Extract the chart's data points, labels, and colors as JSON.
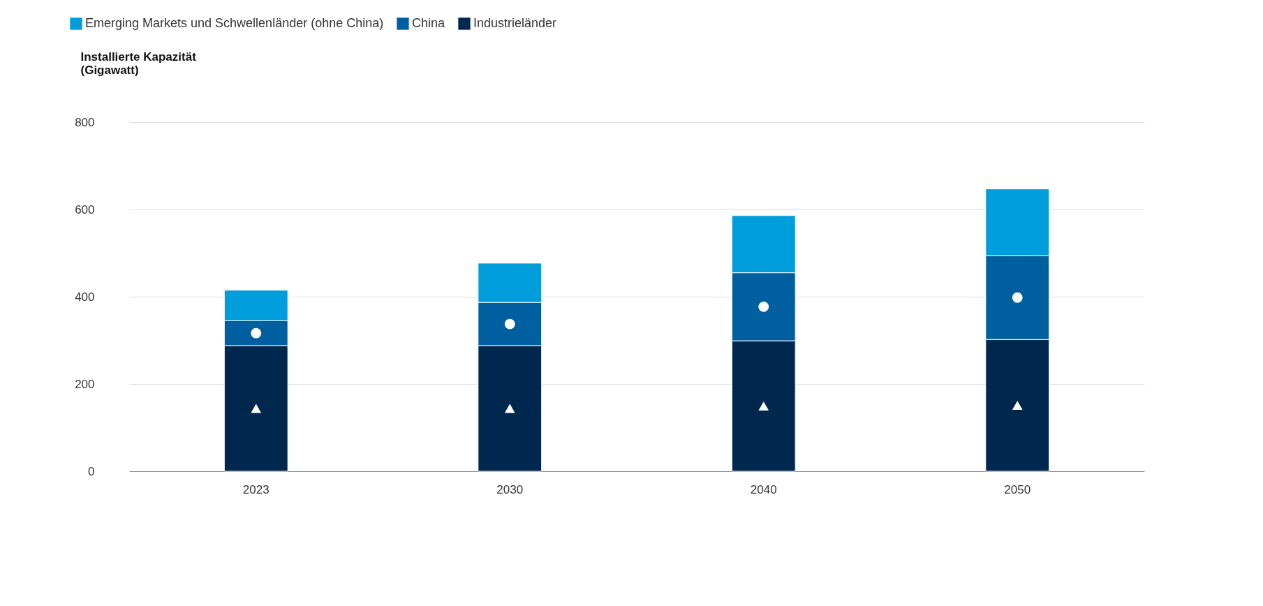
{
  "chart_data": {
    "type": "bar",
    "stacked": true,
    "ylabel": "Installierte Kapazität\n(Gigawatt)",
    "categories": [
      "2023",
      "2030",
      "2040",
      "2050"
    ],
    "series": [
      {
        "name": "Industrieländer",
        "color": "#00274d",
        "marker": "triangle",
        "values": [
          288,
          288,
          299,
          302
        ]
      },
      {
        "name": "China",
        "color": "#00609f",
        "marker": "circle",
        "values": [
          57,
          99,
          156,
          192
        ]
      },
      {
        "name": "Emerging Markets und Schwellenländer (ohne China)",
        "color": "#009ddc",
        "marker": "none",
        "values": [
          70,
          90,
          131,
          153
        ]
      }
    ],
    "ylim": [
      0,
      800
    ],
    "yticks": [
      0,
      200,
      400,
      600,
      800
    ],
    "grid": "y",
    "legend": "top left"
  }
}
